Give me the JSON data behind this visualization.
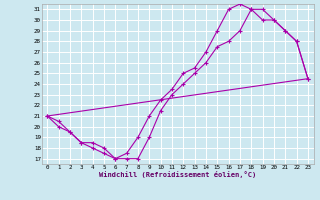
{
  "xlabel": "Windchill (Refroidissement éolien,°C)",
  "bg_color": "#cde8f0",
  "grid_color": "#ffffff",
  "line_color": "#aa00aa",
  "xlim": [
    -0.5,
    23.5
  ],
  "ylim": [
    16.5,
    31.5
  ],
  "xticks": [
    0,
    1,
    2,
    3,
    4,
    5,
    6,
    7,
    8,
    9,
    10,
    11,
    12,
    13,
    14,
    15,
    16,
    17,
    18,
    19,
    20,
    21,
    22,
    23
  ],
  "yticks": [
    17,
    18,
    19,
    20,
    21,
    22,
    23,
    24,
    25,
    26,
    27,
    28,
    29,
    30,
    31
  ],
  "line1_x": [
    0,
    1,
    2,
    3,
    4,
    5,
    6,
    7,
    8,
    9,
    10,
    11,
    12,
    13,
    14,
    15,
    16,
    17,
    18,
    19,
    20,
    21,
    22,
    23
  ],
  "line1_y": [
    21,
    20,
    19.5,
    18.5,
    18.5,
    18,
    17,
    17,
    17,
    19,
    21.5,
    23,
    24,
    25,
    26,
    27.5,
    28,
    29,
    31,
    31,
    30,
    29,
    28,
    24.5
  ],
  "line2_x": [
    0,
    1,
    2,
    3,
    4,
    5,
    6,
    7,
    8,
    9,
    10,
    11,
    12,
    13,
    14,
    15,
    16,
    17,
    18,
    19,
    20,
    21,
    22,
    23
  ],
  "line2_y": [
    21,
    20.5,
    19.5,
    18.5,
    18,
    17.5,
    17,
    17.5,
    19,
    21,
    22.5,
    23.5,
    25,
    25.5,
    27,
    29,
    31,
    31.5,
    31,
    30,
    30,
    29,
    28,
    24.5
  ],
  "line3_x": [
    0,
    23
  ],
  "line3_y": [
    21,
    24.5
  ]
}
